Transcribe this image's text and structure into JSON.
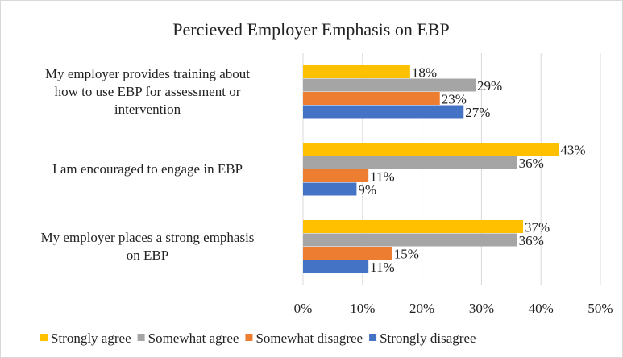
{
  "chart_data": {
    "type": "hbar",
    "title": "Percieved Employer Emphasis on EBP",
    "categories": [
      "My employer provides training about\nhow to use EBP for assessment or\nintervention",
      "I am encouraged to engage in EBP",
      "My employer places a strong emphasis\non EBP"
    ],
    "series": [
      {
        "name": "Strongly agree",
        "color": "#ffc000",
        "values": [
          18,
          43,
          37
        ],
        "value_labels": [
          "18%",
          "43%",
          "37%"
        ]
      },
      {
        "name": "Somewhat agree",
        "color": "#a5a5a5",
        "values": [
          29,
          36,
          36
        ],
        "value_labels": [
          "29%",
          "36%",
          "36%"
        ]
      },
      {
        "name": "Somewhat disagree",
        "color": "#ed7d31",
        "values": [
          23,
          11,
          15
        ],
        "value_labels": [
          "23%",
          "11%",
          "15%"
        ]
      },
      {
        "name": "Strongly disagree",
        "color": "#4472c4",
        "values": [
          27,
          9,
          11
        ],
        "value_labels": [
          "27%",
          "9%",
          "11%"
        ]
      }
    ],
    "xlim": [
      0,
      50
    ],
    "xticks": [
      {
        "value": 0,
        "label": "0%"
      },
      {
        "value": 10,
        "label": "10%"
      },
      {
        "value": 20,
        "label": "20%"
      },
      {
        "value": 30,
        "label": "30%"
      },
      {
        "value": 40,
        "label": "40%"
      },
      {
        "value": 50,
        "label": "50%"
      }
    ],
    "grid": true,
    "legend": "bottom"
  }
}
